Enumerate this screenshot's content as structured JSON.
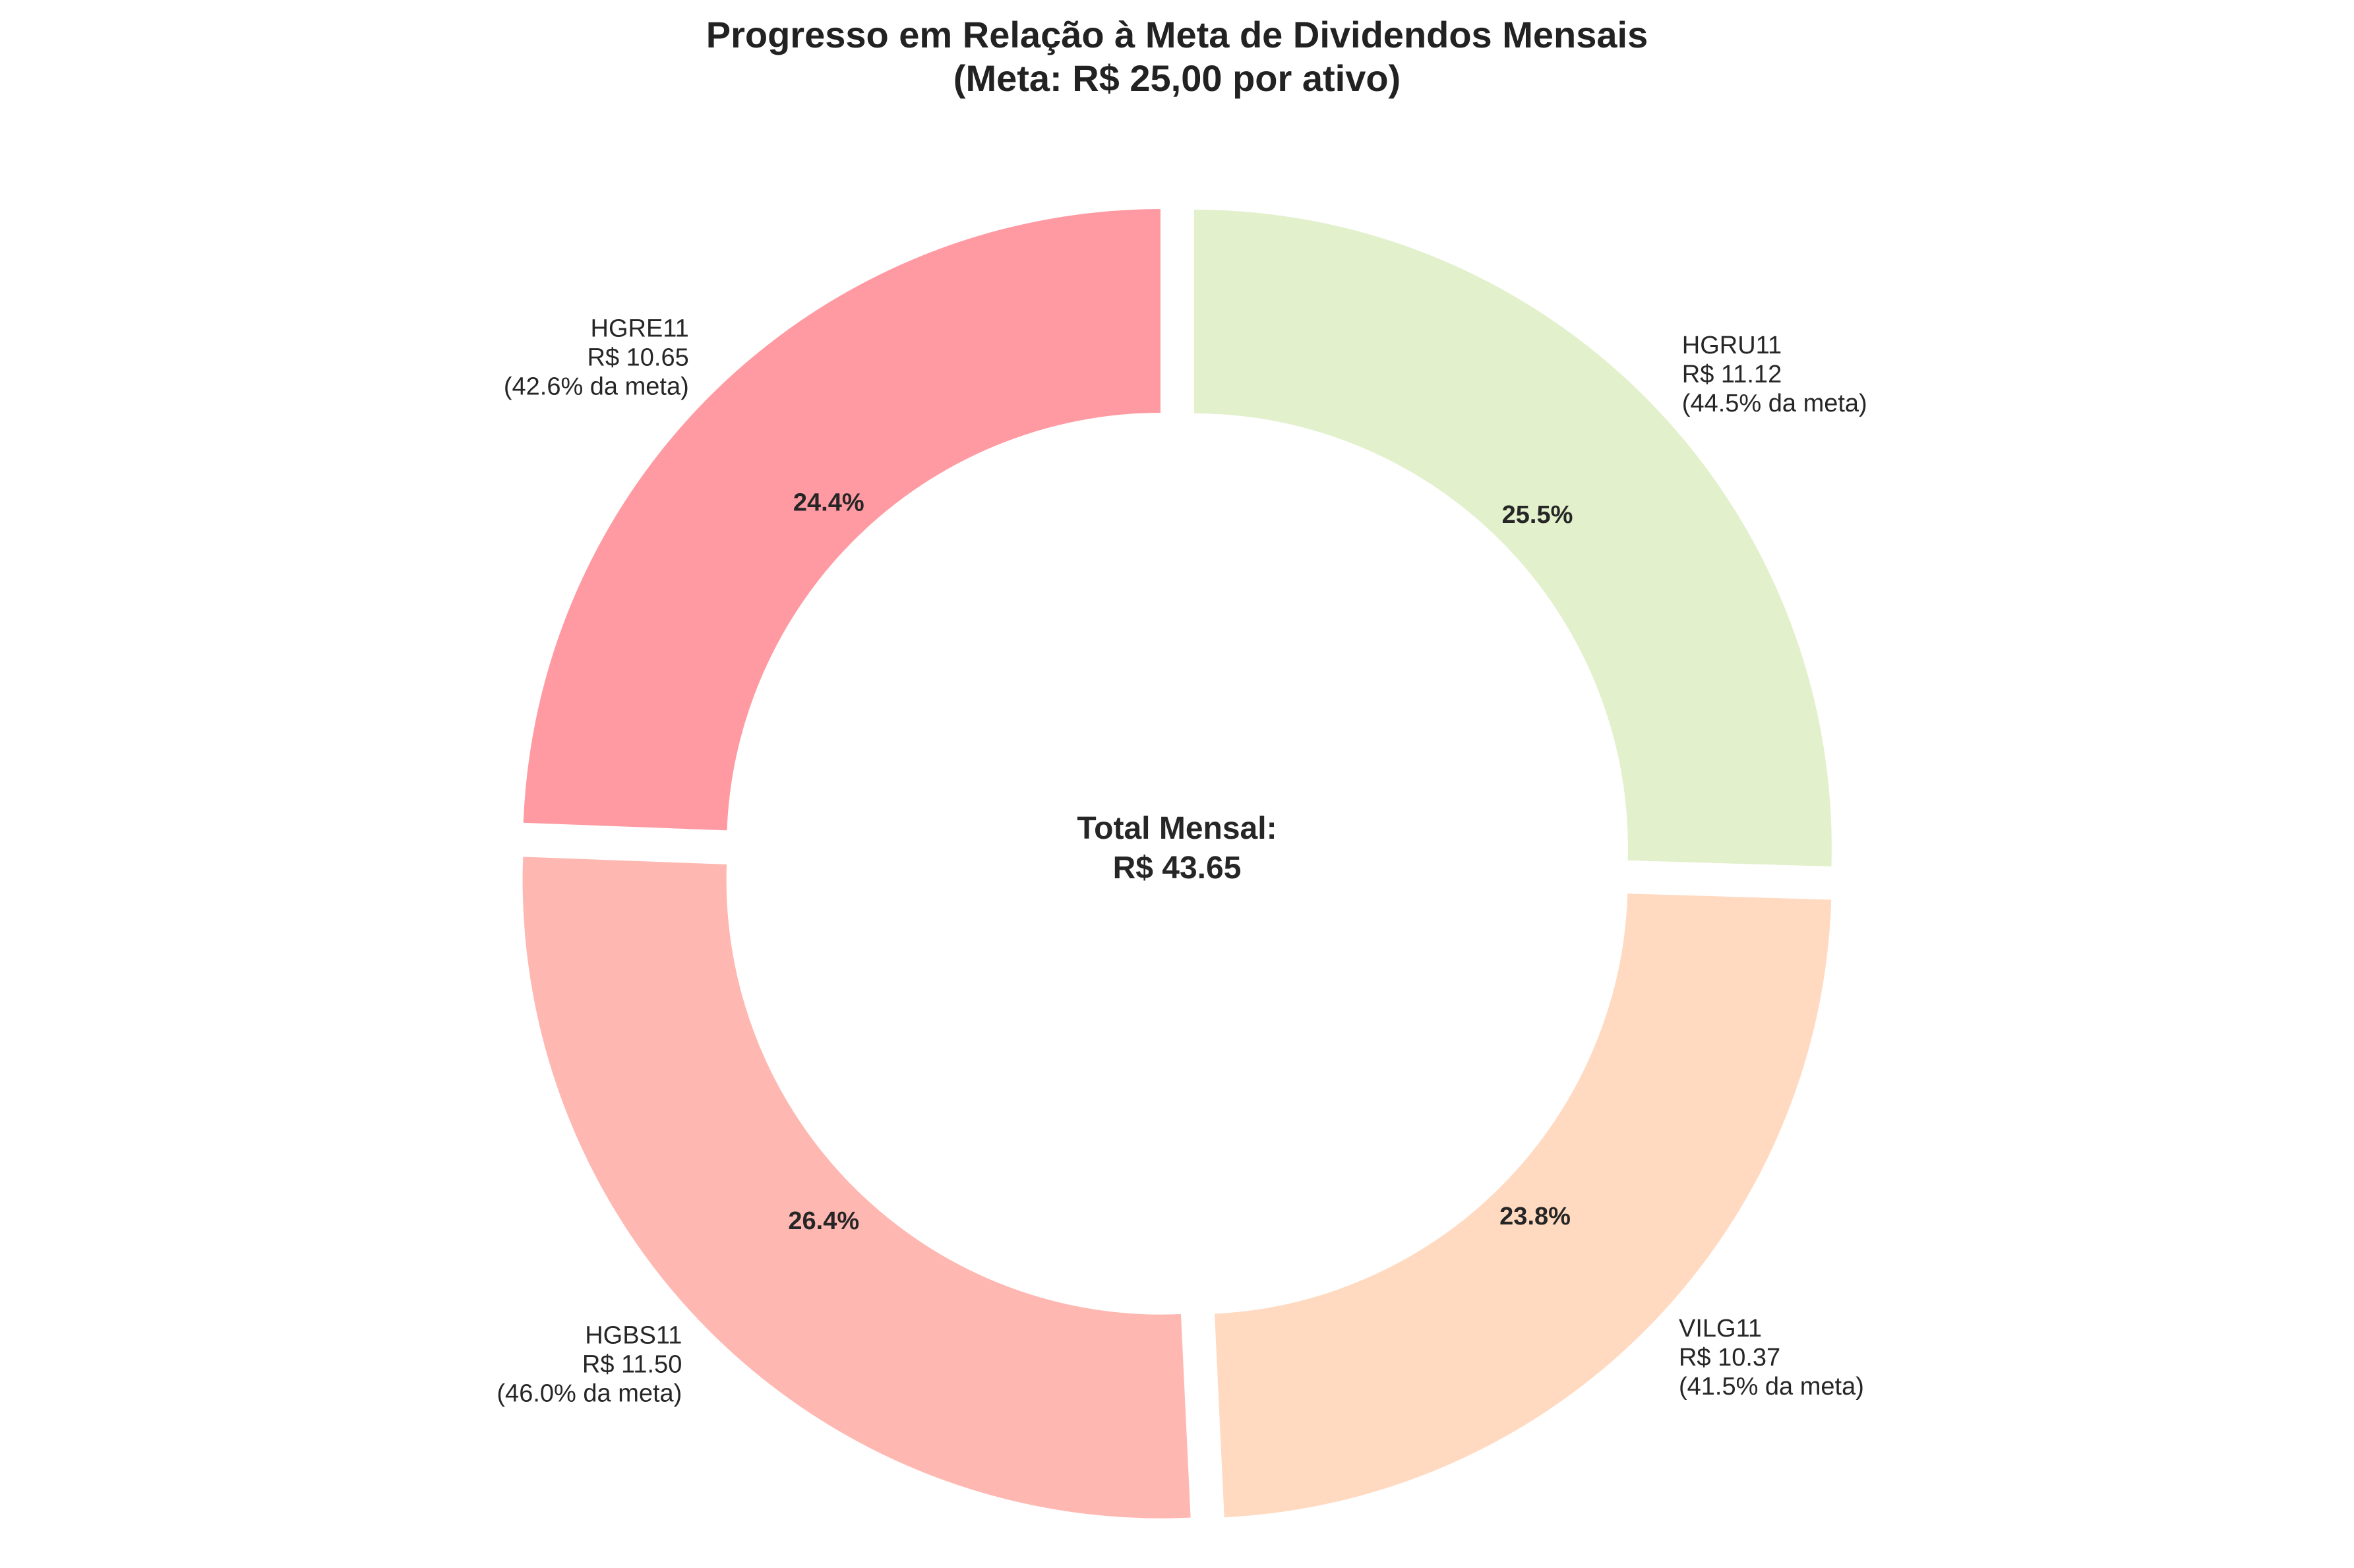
{
  "chart_data": {
    "type": "pie",
    "title_lines": [
      "Progresso em Relação à Meta de Dividendos Mensais",
      "(Meta: R$ 25,00 por ativo)"
    ],
    "center_lines": [
      "Total Mensal:",
      "R$ 43.65"
    ],
    "slices": [
      {
        "name": "HGRU11",
        "value": 11.12,
        "pct_label": "25.5%",
        "label_lines": [
          "HGRU11",
          "R$ 11.12",
          "(44.5% da meta)"
        ],
        "color": "#e2f0cb"
      },
      {
        "name": "VILG11",
        "value": 10.37,
        "pct_label": "23.8%",
        "label_lines": [
          "VILG11",
          "R$ 10.37",
          "(41.5% da meta)"
        ],
        "color": "#ffdac1"
      },
      {
        "name": "HGBS11",
        "value": 11.5,
        "pct_label": "26.4%",
        "label_lines": [
          "HGBS11",
          "R$ 11.50",
          "(46.0% da meta)"
        ],
        "color": "#ffb7b2"
      },
      {
        "name": "HGRE11",
        "value": 10.65,
        "pct_label": "24.4%",
        "label_lines": [
          "HGRE11",
          "R$ 10.65",
          "(42.6% da meta)"
        ],
        "color": "#ff9aa2"
      }
    ],
    "start_angle_deg": 90,
    "direction": "clockwise",
    "donut": true,
    "exploded": true,
    "legend": "none",
    "grid": false
  }
}
